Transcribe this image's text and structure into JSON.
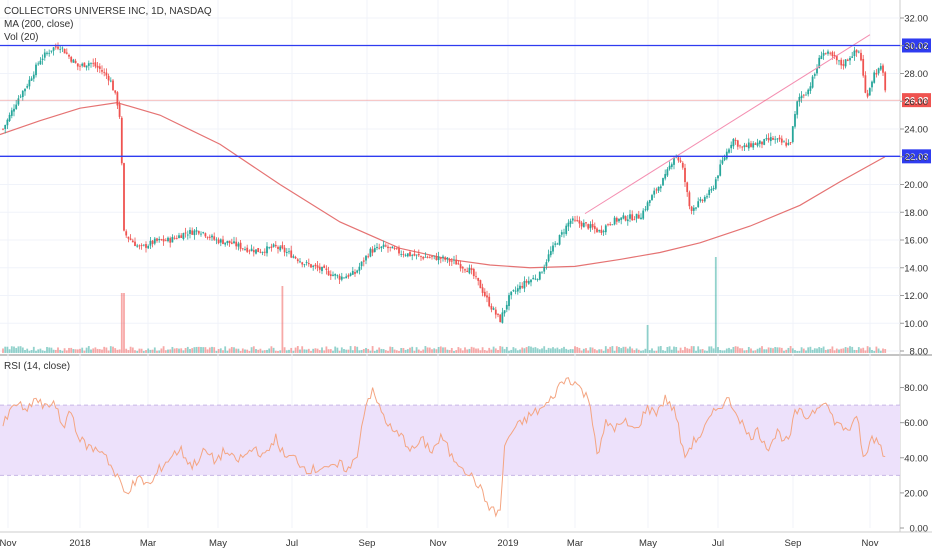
{
  "legend": {
    "title": "COLLECTORS UNIVERSE INC, 1D, NASDAQ",
    "ma": "MA (200, close)",
    "vol": "Vol (20)",
    "rsi": "RSI (14, close)"
  },
  "colors": {
    "up": "#26a69a",
    "down": "#ef5350",
    "ma": "#e57373",
    "hline": "#2f3cf0",
    "rsi_line": "#f4a582",
    "rsi_band": "#ede1fb",
    "trend": "#f48fb1",
    "price_badge": "#ef5350",
    "level_badge": "#2f3cf0"
  },
  "chart_data": [
    {
      "type": "line",
      "name": "price",
      "title": "COLLECTORS UNIVERSE INC, 1D, NASDAQ",
      "ylim": [
        8,
        32
      ],
      "y_ticks": [
        "32.00",
        "30.00",
        "28.00",
        "26.00",
        "24.00",
        "22.00",
        "20.00",
        "18.00",
        "16.00",
        "14.00",
        "12.00",
        "10.00",
        "8.00"
      ],
      "x_ticks": [
        "Nov",
        "2018",
        "Mar",
        "May",
        "Jul",
        "Sep",
        "Nov",
        "2019",
        "Mar",
        "May",
        "Jul",
        "Sep",
        "Nov"
      ],
      "horizontal_levels": [
        30.02,
        22.03
      ],
      "last_price": 26.08,
      "level_labels": [
        "30.02",
        "26.08",
        "22.03"
      ],
      "ma200": [
        [
          0,
          23.6
        ],
        [
          40,
          24.6
        ],
        [
          80,
          25.5
        ],
        [
          117,
          25.9
        ],
        [
          160,
          25.0
        ],
        [
          220,
          22.9
        ],
        [
          280,
          20.0
        ],
        [
          340,
          17.3
        ],
        [
          400,
          15.4
        ],
        [
          450,
          14.6
        ],
        [
          490,
          14.2
        ],
        [
          530,
          14.0
        ],
        [
          575,
          14.1
        ],
        [
          620,
          14.6
        ],
        [
          660,
          15.1
        ],
        [
          700,
          15.8
        ],
        [
          750,
          17.0
        ],
        [
          800,
          18.5
        ],
        [
          840,
          20.2
        ],
        [
          885,
          22.0
        ]
      ],
      "price_path": [
        [
          3,
          24.0
        ],
        [
          10,
          25.0
        ],
        [
          18,
          26.2
        ],
        [
          28,
          27.3
        ],
        [
          40,
          29.0
        ],
        [
          52,
          29.8
        ],
        [
          60,
          30.0
        ],
        [
          68,
          29.3
        ],
        [
          78,
          28.5
        ],
        [
          90,
          28.8
        ],
        [
          100,
          28.3
        ],
        [
          110,
          27.6
        ],
        [
          117,
          26.0
        ],
        [
          120,
          24.8
        ],
        [
          122,
          21.0
        ],
        [
          124,
          16.5
        ],
        [
          128,
          16.2
        ],
        [
          140,
          15.4
        ],
        [
          155,
          15.9
        ],
        [
          170,
          16.0
        ],
        [
          185,
          16.5
        ],
        [
          200,
          16.7
        ],
        [
          215,
          16.0
        ],
        [
          230,
          15.8
        ],
        [
          245,
          15.4
        ],
        [
          260,
          15.2
        ],
        [
          275,
          15.5
        ],
        [
          290,
          15.0
        ],
        [
          305,
          14.3
        ],
        [
          320,
          13.9
        ],
        [
          340,
          13.3
        ],
        [
          355,
          13.6
        ],
        [
          370,
          15.2
        ],
        [
          385,
          15.5
        ],
        [
          400,
          15.1
        ],
        [
          420,
          14.8
        ],
        [
          440,
          14.7
        ],
        [
          455,
          14.4
        ],
        [
          470,
          13.8
        ],
        [
          480,
          12.7
        ],
        [
          490,
          11.3
        ],
        [
          500,
          10.2
        ],
        [
          510,
          12.0
        ],
        [
          525,
          12.9
        ],
        [
          540,
          13.5
        ],
        [
          548,
          14.8
        ],
        [
          558,
          16.0
        ],
        [
          570,
          17.4
        ],
        [
          585,
          17.1
        ],
        [
          600,
          16.6
        ],
        [
          610,
          17.3
        ],
        [
          625,
          17.6
        ],
        [
          640,
          17.7
        ],
        [
          655,
          19.5
        ],
        [
          665,
          20.5
        ],
        [
          675,
          22.2
        ],
        [
          682,
          21.4
        ],
        [
          690,
          18.2
        ],
        [
          700,
          18.7
        ],
        [
          712,
          19.6
        ],
        [
          722,
          21.6
        ],
        [
          733,
          23.3
        ],
        [
          742,
          22.6
        ],
        [
          752,
          22.9
        ],
        [
          762,
          23.0
        ],
        [
          772,
          23.3
        ],
        [
          782,
          23.0
        ],
        [
          790,
          22.9
        ],
        [
          798,
          26.2
        ],
        [
          808,
          26.8
        ],
        [
          815,
          28.0
        ],
        [
          822,
          29.6
        ],
        [
          832,
          29.2
        ],
        [
          842,
          28.6
        ],
        [
          852,
          29.4
        ],
        [
          860,
          29.6
        ],
        [
          866,
          26.2
        ],
        [
          874,
          28.0
        ],
        [
          882,
          28.4
        ],
        [
          887,
          26.1
        ]
      ],
      "trend_line": [
        [
          585,
          17.9
        ],
        [
          870,
          30.8
        ]
      ],
      "volume_spikes": [
        [
          123,
          60
        ],
        [
          282,
          67
        ],
        [
          648,
          28
        ],
        [
          716,
          96
        ]
      ]
    },
    {
      "type": "line",
      "name": "RSI (14, close)",
      "ylim": [
        0,
        90
      ],
      "y_ticks": [
        "80.00",
        "60.00",
        "40.00",
        "20.00",
        "0.00"
      ],
      "band": [
        30,
        70
      ],
      "rsi_path": [
        [
          3,
          58
        ],
        [
          10,
          66
        ],
        [
          18,
          72
        ],
        [
          25,
          65
        ],
        [
          35,
          74
        ],
        [
          45,
          68
        ],
        [
          55,
          73
        ],
        [
          62,
          55
        ],
        [
          70,
          68
        ],
        [
          80,
          50
        ],
        [
          92,
          45
        ],
        [
          104,
          44
        ],
        [
          115,
          30
        ],
        [
          121,
          26
        ],
        [
          124,
          20
        ],
        [
          130,
          23
        ],
        [
          140,
          28
        ],
        [
          150,
          24
        ],
        [
          160,
          34
        ],
        [
          170,
          40
        ],
        [
          180,
          45
        ],
        [
          192,
          35
        ],
        [
          205,
          44
        ],
        [
          215,
          38
        ],
        [
          225,
          44
        ],
        [
          235,
          38
        ],
        [
          245,
          41
        ],
        [
          255,
          46
        ],
        [
          265,
          40
        ],
        [
          275,
          52
        ],
        [
          285,
          40
        ],
        [
          295,
          40
        ],
        [
          305,
          34
        ],
        [
          315,
          33
        ],
        [
          325,
          36
        ],
        [
          330,
          33
        ],
        [
          340,
          36
        ],
        [
          350,
          33
        ],
        [
          358,
          44
        ],
        [
          365,
          70
        ],
        [
          372,
          78
        ],
        [
          380,
          68
        ],
        [
          392,
          55
        ],
        [
          402,
          52
        ],
        [
          412,
          44
        ],
        [
          422,
          50
        ],
        [
          432,
          44
        ],
        [
          442,
          52
        ],
        [
          452,
          40
        ],
        [
          462,
          36
        ],
        [
          470,
          30
        ],
        [
          478,
          25
        ],
        [
          486,
          15
        ],
        [
          494,
          9
        ],
        [
          500,
          9
        ],
        [
          505,
          48
        ],
        [
          512,
          55
        ],
        [
          522,
          60
        ],
        [
          532,
          65
        ],
        [
          542,
          68
        ],
        [
          550,
          72
        ],
        [
          558,
          80
        ],
        [
          566,
          85
        ],
        [
          574,
          84
        ],
        [
          582,
          78
        ],
        [
          590,
          72
        ],
        [
          598,
          40
        ],
        [
          606,
          60
        ],
        [
          616,
          57
        ],
        [
          626,
          60
        ],
        [
          636,
          55
        ],
        [
          646,
          68
        ],
        [
          656,
          66
        ],
        [
          666,
          74
        ],
        [
          676,
          65
        ],
        [
          684,
          40
        ],
        [
          692,
          48
        ],
        [
          702,
          54
        ],
        [
          712,
          64
        ],
        [
          720,
          70
        ],
        [
          728,
          73
        ],
        [
          738,
          65
        ],
        [
          748,
          52
        ],
        [
          758,
          55
        ],
        [
          768,
          46
        ],
        [
          778,
          55
        ],
        [
          788,
          48
        ],
        [
          796,
          67
        ],
        [
          806,
          63
        ],
        [
          816,
          68
        ],
        [
          824,
          74
        ],
        [
          832,
          63
        ],
        [
          842,
          57
        ],
        [
          850,
          57
        ],
        [
          858,
          62
        ],
        [
          864,
          37
        ],
        [
          872,
          52
        ],
        [
          880,
          48
        ],
        [
          886,
          39
        ]
      ]
    }
  ]
}
